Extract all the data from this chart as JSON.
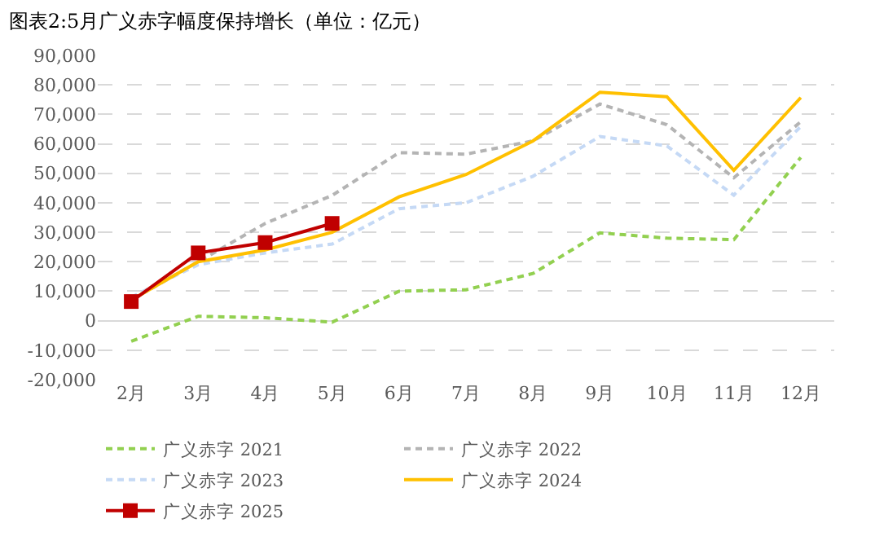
{
  "chart_data": {
    "type": "line",
    "title": "图表2:5月广义赤字幅度保持增长（单位：亿元）",
    "categories": [
      "2月",
      "3月",
      "4月",
      "5月",
      "6月",
      "7月",
      "8月",
      "9月",
      "10月",
      "11月",
      "12月"
    ],
    "series": [
      {
        "name": "广义赤字 2021",
        "color": "#92d050",
        "line_style": "dashed",
        "values": [
          -7000,
          1500,
          1000,
          -500,
          10000,
          10500,
          16000,
          29800,
          28000,
          27500,
          55400
        ]
      },
      {
        "name": "广义赤字 2022",
        "color": "#b4b4b4",
        "line_style": "dashed",
        "values": [
          7000,
          20000,
          33000,
          42500,
          57000,
          56500,
          61000,
          73500,
          66500,
          48500,
          67500
        ]
      },
      {
        "name": "广义赤字 2023",
        "color": "#c5d9f5",
        "line_style": "dashed",
        "values": [
          8000,
          19000,
          23000,
          26000,
          38000,
          40000,
          49000,
          62500,
          59300,
          42600,
          65900
        ]
      },
      {
        "name": "广义赤字 2024",
        "color": "#ffc000",
        "line_style": "solid",
        "values": [
          7000,
          20000,
          24000,
          30000,
          42000,
          49600,
          61000,
          77500,
          76000,
          51000,
          75700
        ]
      },
      {
        "name": "广义赤字 2025",
        "color": "#c00000",
        "line_style": "solid",
        "marker": "square",
        "values": [
          6500,
          23000,
          26500,
          33000,
          null,
          null,
          null,
          null,
          null,
          null,
          null
        ]
      }
    ],
    "ylim": [
      -20000,
      90000
    ],
    "yticks": [
      {
        "value": -20000,
        "label": "-20,000"
      },
      {
        "value": -10000,
        "label": "-10,000"
      },
      0,
      {
        "value": 10000,
        "label": "10,000"
      },
      {
        "value": 20000,
        "label": "20,000"
      },
      {
        "value": 30000,
        "label": "30,000"
      },
      {
        "value": 40000,
        "label": "40,000"
      },
      {
        "value": 50000,
        "label": "50,000"
      },
      {
        "value": 60000,
        "label": "60,000"
      },
      {
        "value": 70000,
        "label": "70,000"
      },
      {
        "value": 80000,
        "label": "80,000"
      },
      {
        "value": 90000,
        "label": "90,000"
      }
    ],
    "grid": "y",
    "legend": "bottom"
  }
}
